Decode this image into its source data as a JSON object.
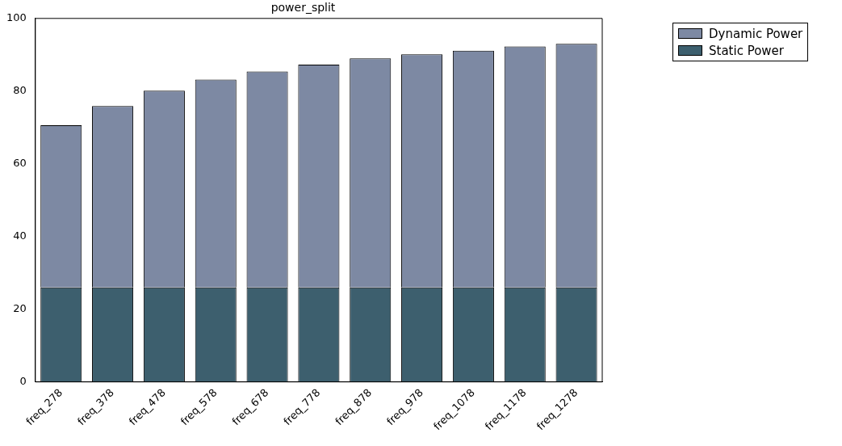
{
  "chart_data": {
    "type": "bar",
    "title": "power_split",
    "stacked": true,
    "categories": [
      "freq_278",
      "freq_378",
      "freq_478",
      "freq_578",
      "freq_678",
      "freq_778",
      "freq_878",
      "freq_978",
      "freq_1078",
      "freq_1178",
      "freq_1278"
    ],
    "series": [
      {
        "name": "Static Power",
        "color": "#3d5f6e",
        "values": [
          26,
          26,
          26,
          26,
          26,
          26,
          26,
          26,
          26,
          26,
          26
        ]
      },
      {
        "name": "Dynamic Power",
        "color": "#7d89a3",
        "values": [
          44.6,
          49.9,
          54.1,
          57.2,
          59.4,
          61.3,
          63,
          64.1,
          65.1,
          66.3,
          67
        ]
      }
    ],
    "ylim": [
      0,
      100
    ],
    "yticks": [
      0,
      20,
      40,
      60,
      80,
      100
    ],
    "grid": false,
    "legend": "top right"
  }
}
